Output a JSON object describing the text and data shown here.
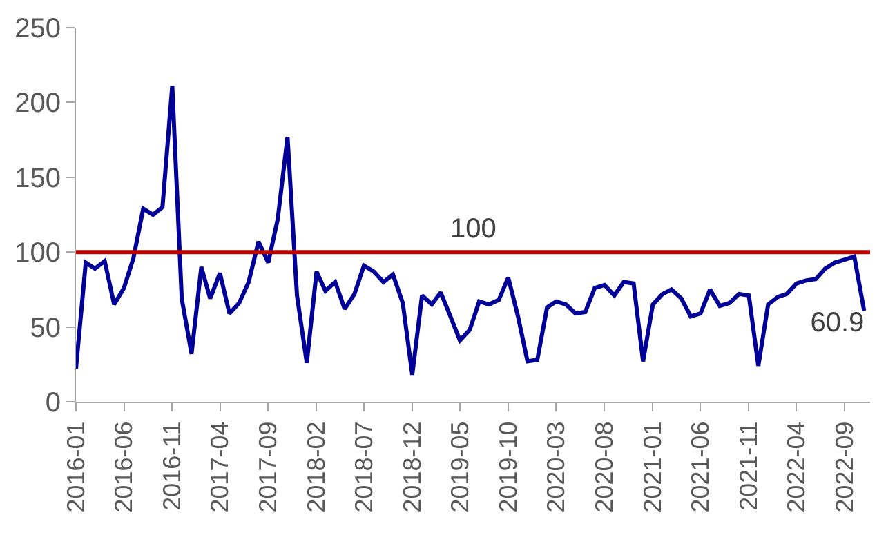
{
  "chart_data": {
    "type": "line",
    "x": [
      "2016-01",
      "2016-02",
      "2016-03",
      "2016-04",
      "2016-05",
      "2016-06",
      "2016-07",
      "2016-08",
      "2016-09",
      "2016-10",
      "2016-11",
      "2016-12",
      "2017-01",
      "2017-02",
      "2017-03",
      "2017-04",
      "2017-05",
      "2017-06",
      "2017-07",
      "2017-08",
      "2017-09",
      "2017-10",
      "2017-11",
      "2017-12",
      "2018-01",
      "2018-02",
      "2018-03",
      "2018-04",
      "2018-05",
      "2018-06",
      "2018-07",
      "2018-08",
      "2018-09",
      "2018-10",
      "2018-11",
      "2018-12",
      "2019-01",
      "2019-02",
      "2019-03",
      "2019-04",
      "2019-05",
      "2019-06",
      "2019-07",
      "2019-08",
      "2019-09",
      "2019-10",
      "2019-11",
      "2019-12",
      "2020-01",
      "2020-02",
      "2020-03",
      "2020-04",
      "2020-05",
      "2020-06",
      "2020-07",
      "2020-08",
      "2020-09",
      "2020-10",
      "2020-11",
      "2020-12",
      "2021-01",
      "2021-02",
      "2021-03",
      "2021-04",
      "2021-05",
      "2021-06",
      "2021-07",
      "2021-08",
      "2021-09",
      "2021-10",
      "2021-11",
      "2021-12",
      "2022-01",
      "2022-02",
      "2022-03",
      "2022-04",
      "2022-05",
      "2022-06",
      "2022-07",
      "2022-08",
      "2022-09",
      "2022-10",
      "2022-11"
    ],
    "series": [
      {
        "color": "#000099",
        "value_labels": [
          null,
          null,
          null,
          null,
          null,
          null,
          null,
          null,
          null,
          null,
          null,
          null,
          null,
          null,
          null,
          null,
          null,
          null,
          null,
          null,
          null,
          null,
          null,
          null,
          null,
          null,
          null,
          null,
          null,
          null,
          null,
          null,
          null,
          null,
          null,
          null,
          null,
          null,
          null,
          null,
          null,
          null,
          null,
          null,
          null,
          null,
          null,
          null,
          null,
          null,
          null,
          null,
          null,
          null,
          null,
          null,
          null,
          null,
          null,
          null,
          null,
          null,
          null,
          null,
          null,
          null,
          null,
          null,
          null,
          null,
          null,
          null,
          null,
          null,
          null,
          null,
          null,
          null,
          null,
          null,
          null,
          null,
          "60.9"
        ],
        "values": [
          22,
          93,
          89,
          94,
          65,
          76,
          96,
          129,
          125,
          130,
          211,
          69,
          32,
          90,
          69,
          86,
          59,
          66,
          80,
          107,
          93,
          122,
          177,
          71,
          26,
          87,
          74,
          80,
          62,
          72,
          91,
          87,
          80,
          85,
          66,
          18,
          71,
          65,
          73,
          57,
          41,
          48,
          67,
          65,
          68,
          83,
          57,
          27,
          28,
          63,
          67,
          65,
          59,
          60,
          76,
          78,
          71,
          80,
          79,
          27,
          65,
          72,
          75,
          69,
          57,
          59,
          75,
          64,
          66,
          72,
          71,
          24,
          65,
          70,
          72,
          79,
          81,
          82,
          89,
          93,
          95,
          97,
          60.9
        ]
      }
    ],
    "xlim": [
      "2016-01-01",
      "2022-11-20"
    ],
    "xticks": [
      {
        "value": "2016-01",
        "label": "2016-01"
      },
      {
        "value": "2016-06",
        "label": "2016-06"
      },
      {
        "value": "2016-11",
        "label": "2016-11"
      },
      {
        "value": "2017-04",
        "label": "2017-04"
      },
      {
        "value": "2017-09",
        "label": "2017-09"
      },
      {
        "value": "2018-02",
        "label": "2018-02"
      },
      {
        "value": "2018-07",
        "label": "2018-07"
      },
      {
        "value": "2018-12",
        "label": "2018-12"
      },
      {
        "value": "2019-05",
        "label": "2019-05"
      },
      {
        "value": "2019-10",
        "label": "2019-10"
      },
      {
        "value": "2020-03",
        "label": "2020-03"
      },
      {
        "value": "2020-08",
        "label": "2020-08"
      },
      {
        "value": "2021-01",
        "label": "2021-01"
      },
      {
        "value": "2021-06",
        "label": "2021-06"
      },
      {
        "value": "2021-11",
        "label": "2021-11"
      },
      {
        "value": "2022-04",
        "label": "2022-04"
      },
      {
        "value": "2022-09",
        "label": "2022-09"
      }
    ],
    "ylim": [
      0,
      250
    ],
    "yticks": [
      0,
      50,
      100,
      150,
      200,
      250
    ],
    "grid": false,
    "marker": "none",
    "line_style": "solid",
    "ref_lines": [
      {
        "axis": "y",
        "value": 100,
        "label": "100",
        "color": "#c00000"
      }
    ]
  }
}
